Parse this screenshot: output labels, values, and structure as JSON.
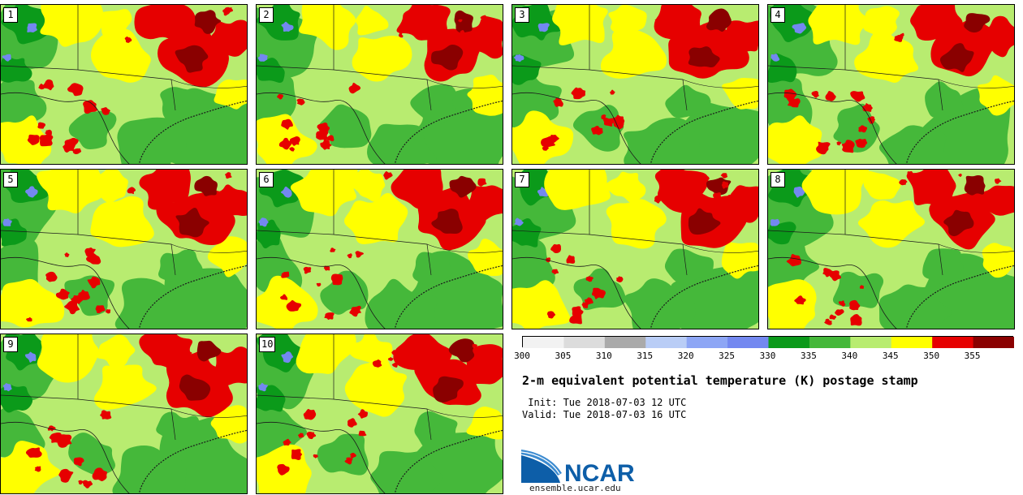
{
  "members": [
    {
      "label": "1",
      "seed": 11
    },
    {
      "label": "2",
      "seed": 23
    },
    {
      "label": "3",
      "seed": 37
    },
    {
      "label": "4",
      "seed": 41
    },
    {
      "label": "5",
      "seed": 53
    },
    {
      "label": "6",
      "seed": 67
    },
    {
      "label": "7",
      "seed": 71
    },
    {
      "label": "8",
      "seed": 83
    },
    {
      "label": "9",
      "seed": 97
    },
    {
      "label": "10",
      "seed": 109
    }
  ],
  "colorbar": {
    "ticks": [
      "300",
      "305",
      "310",
      "315",
      "320",
      "325",
      "330",
      "335",
      "340",
      "345",
      "350",
      "355"
    ],
    "colors": [
      "#f2f2f2",
      "#dcdcdc",
      "#aaaaaa",
      "#b9cdf6",
      "#8da6f5",
      "#7388f0",
      "#0b9a1a",
      "#45b83a",
      "#b8ec70",
      "#ffff00",
      "#e60000",
      "#8a0000"
    ]
  },
  "title": "2-m equivalent potential temperature (K) postage stamp",
  "init_line": " Init: Tue 2018-07-03 12 UTC",
  "valid_line": "Valid: Tue 2018-07-03 16 UTC",
  "logo_text": "NCAR",
  "url": "ensemble.ucar.edu"
}
